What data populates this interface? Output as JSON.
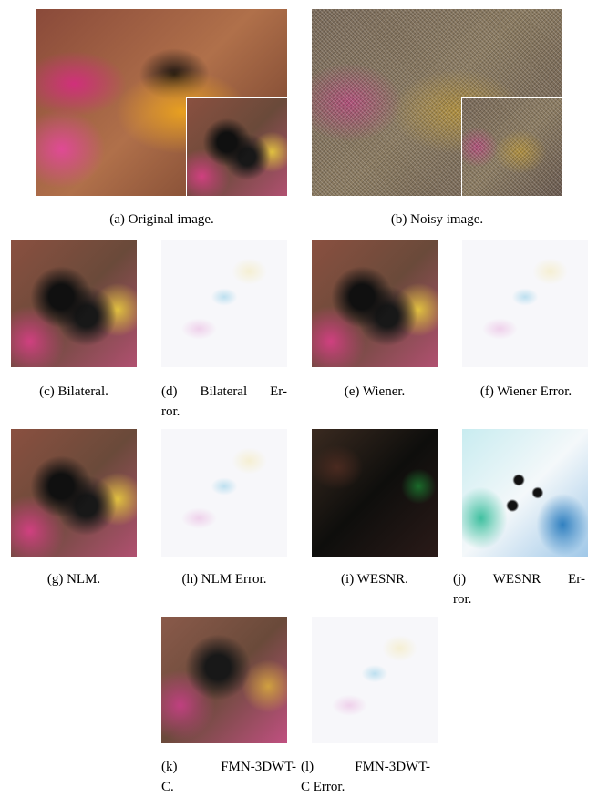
{
  "figure": {
    "panels": [
      {
        "caption": [
          "(a) Original image."
        ]
      },
      {
        "caption": [
          "(b) Noisy image."
        ]
      },
      {
        "caption": [
          "(c) Bilateral."
        ]
      },
      {
        "caption": [
          "(d) Bilateral Er-",
          "ror."
        ]
      },
      {
        "caption": [
          "(e) Wiener."
        ]
      },
      {
        "caption": [
          "(f) Wiener Error."
        ]
      },
      {
        "caption": [
          "(g) NLM."
        ]
      },
      {
        "caption": [
          "(h) NLM Error."
        ]
      },
      {
        "caption": [
          "(i) WESNR."
        ]
      },
      {
        "caption": [
          "(j) WESNR Er-",
          "ror."
        ]
      },
      {
        "caption": [
          "(k) FMN-3DWT-",
          "C."
        ]
      },
      {
        "caption": [
          "(l) FMN-3DWT-",
          "C Error."
        ]
      }
    ]
  }
}
